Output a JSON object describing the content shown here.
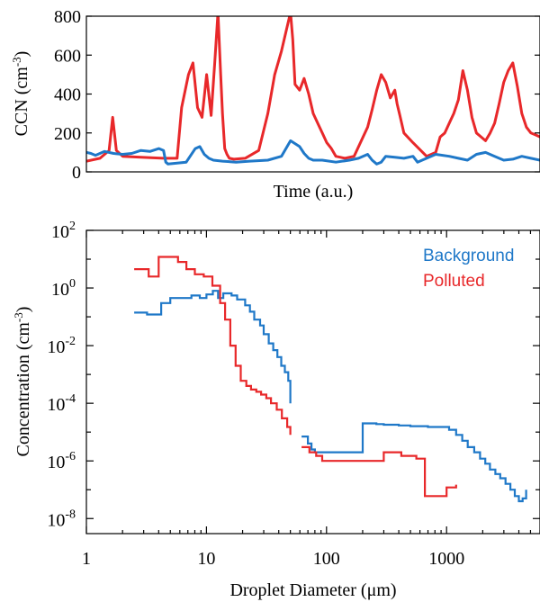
{
  "colors": {
    "background": "#1f78c8",
    "polluted": "#e8282a"
  },
  "chart_data": [
    {
      "type": "line",
      "xlabel": "Time (a.u.)",
      "ylabel": "CCN (cm-3)",
      "ylabel_main": "CCN (cm",
      "ylabel_sup": "-3",
      "ylabel_close": ")",
      "ylim": [
        0,
        800
      ],
      "xlim": [
        0,
        100
      ],
      "yticks": [
        0,
        200,
        400,
        600,
        800
      ],
      "ytick_labels": [
        "0",
        "200",
        "400",
        "600",
        "800"
      ],
      "series": [
        {
          "name": "Polluted",
          "color": "#e8282a",
          "x": [
            0,
            3,
            5,
            5.8,
            6.6,
            8,
            12,
            17,
            20,
            21,
            22.5,
            23.5,
            24.5,
            25.5,
            26.5,
            27.5,
            28.3,
            29,
            29.6,
            30,
            30.5,
            31,
            31.5,
            32.5,
            35,
            38,
            40,
            41.5,
            43,
            45,
            45.5,
            46,
            47,
            48,
            49,
            50,
            51,
            52,
            53,
            54,
            55,
            57,
            59,
            62,
            63,
            64,
            65,
            66,
            67,
            68,
            68.5,
            69,
            70,
            72,
            75,
            77,
            78,
            79,
            80,
            81,
            82,
            83,
            84,
            85,
            86,
            87,
            88,
            89,
            90,
            91,
            92,
            93,
            94,
            95,
            96,
            97,
            98,
            99,
            100
          ],
          "y": [
            55,
            70,
            110,
            280,
            110,
            80,
            75,
            70,
            70,
            330,
            500,
            560,
            330,
            280,
            500,
            290,
            560,
            820,
            500,
            300,
            120,
            90,
            70,
            65,
            70,
            110,
            300,
            500,
            620,
            820,
            680,
            450,
            420,
            480,
            400,
            300,
            250,
            200,
            150,
            120,
            80,
            70,
            80,
            230,
            320,
            420,
            500,
            460,
            380,
            420,
            350,
            300,
            200,
            150,
            80,
            100,
            180,
            200,
            250,
            300,
            370,
            520,
            420,
            280,
            200,
            180,
            160,
            200,
            250,
            350,
            460,
            520,
            560,
            440,
            300,
            230,
            200,
            190,
            180
          ]
        },
        {
          "name": "Background",
          "color": "#1f78c8",
          "x": [
            0,
            1,
            2,
            4,
            6,
            8,
            10,
            12,
            14,
            16,
            17,
            17.5,
            18,
            20,
            22,
            24,
            25,
            26,
            27,
            28,
            30,
            33,
            36,
            40,
            43,
            45,
            47,
            48,
            49,
            50,
            52,
            55,
            58,
            60,
            62,
            63,
            64,
            65,
            66,
            68,
            70,
            72,
            73,
            75,
            77,
            80,
            82,
            84,
            86,
            88,
            90,
            92,
            94,
            96,
            98,
            100
          ],
          "y": [
            100,
            95,
            85,
            105,
            95,
            90,
            95,
            110,
            105,
            120,
            110,
            50,
            40,
            45,
            50,
            120,
            130,
            90,
            70,
            60,
            55,
            50,
            55,
            60,
            80,
            160,
            130,
            95,
            70,
            60,
            60,
            50,
            60,
            70,
            90,
            60,
            40,
            50,
            80,
            75,
            70,
            80,
            50,
            70,
            90,
            80,
            70,
            60,
            90,
            100,
            80,
            60,
            65,
            80,
            70,
            60
          ]
        }
      ]
    },
    {
      "type": "line",
      "step": true,
      "xlabel": "Droplet Diameter (μm)",
      "ylabel": "Concentration (cm-3)",
      "ylabel_main": "Concentration (cm",
      "ylabel_sup": "-3",
      "ylabel_close": ")",
      "xscale": "log",
      "yscale": "log",
      "xlim": [
        1,
        6000
      ],
      "ylim": [
        3e-09,
        100
      ],
      "xticks": [
        1,
        10,
        100,
        1000
      ],
      "xtick_labels": [
        "1",
        "10",
        "100",
        "1000"
      ],
      "yticks": [
        1e-08,
        1e-06,
        0.0001,
        0.01,
        1,
        100
      ],
      "ytick_base": "10",
      "ytick_exponents": [
        "-8",
        "-6",
        "-4",
        "-2",
        "0",
        "2"
      ],
      "legend": {
        "position": "top-right"
      },
      "series": [
        {
          "name": "Background",
          "color": "#1f78c8",
          "x": [
            2.5,
            3.2,
            4.2,
            5.0,
            7.5,
            8.8,
            10.0,
            11.3,
            12.5,
            13.8,
            16.2,
            18.0,
            21.0,
            23.0,
            25.0,
            28.0,
            30.0,
            33.0,
            36.0,
            39.0,
            42.0,
            45.0,
            48.0,
            50.0,
            62,
            70,
            75,
            80,
            200,
            260,
            300,
            400,
            500,
            700,
            900,
            1050,
            1200,
            1350,
            1500,
            1700,
            1900,
            2100,
            2300,
            2550,
            2800,
            3100,
            3400,
            3700,
            4000,
            4300,
            4600
          ],
          "y": [
            0.14,
            0.12,
            0.3,
            0.45,
            0.55,
            0.45,
            0.6,
            0.8,
            0.45,
            0.65,
            0.55,
            0.4,
            0.25,
            0.15,
            0.08,
            0.05,
            0.025,
            0.012,
            0.007,
            0.004,
            0.002,
            0.0012,
            0.0006,
            0.0001,
            7e-06,
            4e-06,
            2.5e-06,
            2e-06,
            2e-05,
            1.9e-05,
            1.8e-05,
            1.7e-05,
            1.6e-05,
            1.5e-05,
            1.5e-05,
            1.2e-05,
            8e-06,
            5e-06,
            3e-06,
            2e-06,
            1.2e-06,
            8e-07,
            5e-07,
            3.5e-07,
            2.5e-07,
            1.6e-07,
            1e-07,
            6e-08,
            4e-08,
            5e-08,
            1e-07
          ]
        },
        {
          "name": "Polluted",
          "color": "#e8282a",
          "x": [
            2.5,
            3.3,
            4.0,
            5.8,
            6.8,
            8.0,
            9.5,
            11.2,
            13.0,
            14.3,
            15.8,
            17.5,
            19.3,
            21.5,
            23.5,
            26.0,
            28.5,
            31.5,
            34.5,
            38.5,
            42.5,
            47.0,
            50.0,
            62,
            72,
            82,
            92,
            300,
            420,
            560,
            660,
            880,
            1000,
            1200
          ],
          "y": [
            4.5,
            2.5,
            12,
            8,
            4.5,
            3,
            2.5,
            1.2,
            0.3,
            0.08,
            0.01,
            0.002,
            0.0006,
            0.0004,
            0.0003,
            0.00025,
            0.0002,
            0.00015,
            0.0001,
            6e-05,
            3e-05,
            1.5e-05,
            8e-06,
            3e-06,
            2e-06,
            1.5e-06,
            1e-06,
            2e-06,
            1.5e-06,
            1.2e-06,
            6e-08,
            6e-08,
            1.2e-07,
            1.5e-07
          ]
        }
      ]
    }
  ]
}
